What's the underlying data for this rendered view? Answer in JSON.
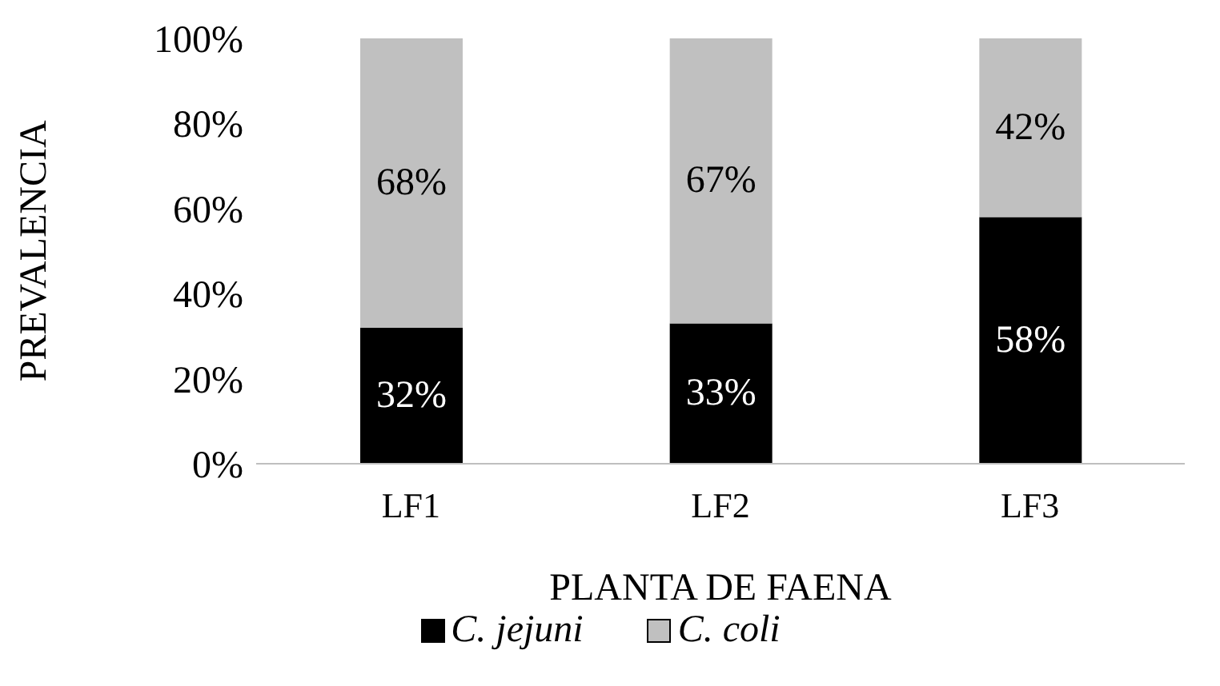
{
  "chart_data": {
    "type": "bar",
    "stacked": true,
    "xlabel": "PLANTA DE FAENA",
    "ylabel": "PREVALENCIA",
    "categories": [
      "LF1",
      "LF2",
      "LF3"
    ],
    "series": [
      {
        "name": "C. jejuni",
        "color": "#000000",
        "values": [
          32,
          33,
          58
        ],
        "value_labels": [
          "32%",
          "33%",
          "58%"
        ]
      },
      {
        "name": "C. coli",
        "color": "#c0c0c0",
        "values": [
          68,
          67,
          42
        ],
        "value_labels": [
          "68%",
          "67%",
          "42%"
        ]
      }
    ],
    "ylim": [
      0,
      100
    ],
    "yticks": [
      {
        "value": 0,
        "label": "0%"
      },
      {
        "value": 20,
        "label": "20%"
      },
      {
        "value": 40,
        "label": "40%"
      },
      {
        "value": 60,
        "label": "60%"
      },
      {
        "value": 80,
        "label": "80%"
      },
      {
        "value": 100,
        "label": "100%"
      }
    ],
    "grid": false,
    "legend": "bottom"
  }
}
